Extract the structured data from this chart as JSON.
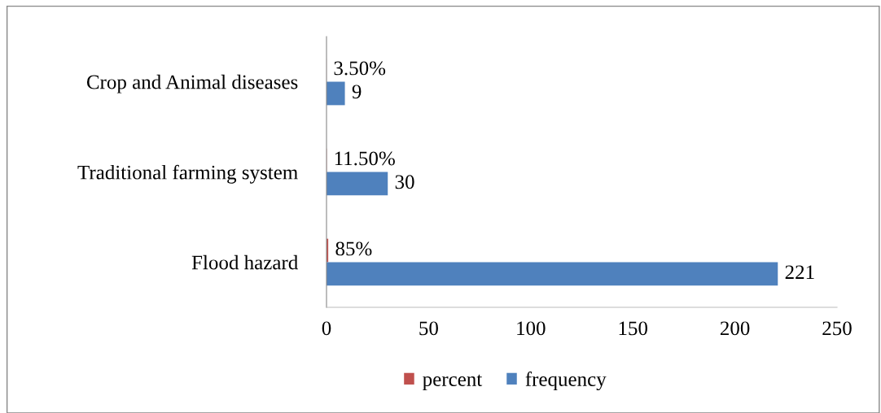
{
  "chart_data": {
    "type": "bar",
    "orientation": "horizontal",
    "categories": [
      "Crop and Animal diseases",
      "Traditional farming system",
      "Flood hazard"
    ],
    "series": [
      {
        "name": "percent",
        "color": "#c0504d",
        "values": [
          0.035,
          0.115,
          0.85
        ],
        "value_labels": [
          "3.50%",
          "11.50%",
          "85%"
        ]
      },
      {
        "name": "frequency",
        "color": "#4f81bd",
        "values": [
          9,
          30,
          221
        ],
        "value_labels": [
          "9",
          "30",
          "221"
        ]
      }
    ],
    "xlim": [
      0,
      250
    ],
    "xticks": [
      0,
      50,
      100,
      150,
      200,
      250
    ],
    "grid": false,
    "legend": "bottom"
  }
}
